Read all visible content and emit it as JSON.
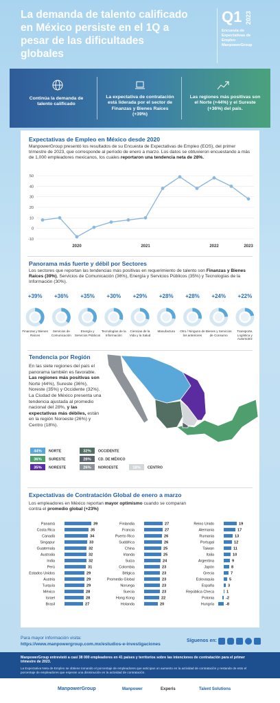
{
  "header": {
    "title": "La demanda de talento calificado en México persiste en el 1Q a pesar de las dificultades globales",
    "badge": {
      "quarter": "Q1",
      "year": "2023",
      "caption": "Encuesta de Expectativas de Empleo ManpowerGroup"
    }
  },
  "highlights": [
    "Continúa la demanda de talento calificado",
    "La expectativa de contratación está liderada por el sector de Finanzas y Bienes Raíces (+39%)",
    "Las regiones más positivas son el Norte (+44%) y el Sureste (+36%) del país."
  ],
  "chart_data": [
    {
      "type": "line",
      "title": "Expectativas de Empleo en México desde 2020",
      "text": [
        {
          "text": "ManpowerGroup presentó los resultados de su Encuesta de Expectativas de Empleo (EOS), del primer trimestre de 2023, que corresponde al período de enero a marzo. Los datos se obtuvieron encuestando a más de 1,000 empleadores mexicanos, los cuales "
        },
        {
          "text": "reportaron una tendencia neta de 28%.",
          "bold": true
        }
      ],
      "categories": [
        null,
        null,
        "2020",
        null,
        null,
        null,
        "2021",
        null,
        null,
        null,
        "2022",
        null,
        "2023"
      ],
      "values": [
        8,
        10,
        -8,
        1,
        6,
        8,
        10,
        38,
        49,
        38,
        48,
        40,
        28
      ],
      "color": "#8bb8de",
      "ylim": [
        -10,
        50
      ],
      "yticks": [
        -10,
        0,
        10,
        20,
        30,
        40,
        50
      ],
      "grid": true
    },
    {
      "type": "donut",
      "title": "Panorama más fuerte y débil por Sectores",
      "text": [
        {
          "text": "Los sectores que reportan las tendencias más positivas en requerimiento de talento son "
        },
        {
          "text": "Finanzas y Bienes Raíces (39%)",
          "bold": true
        },
        {
          "text": ", Servicios de Comunicación (36%), Energía y Servicios Públicos (35%) y Tecnologías de la Información (30%)."
        }
      ],
      "categories": [
        "Finanzas y Bienes Raíces",
        "Servicios de Comunicación",
        "Energía y Servicios Públicos",
        "Tecnologías de la Información",
        "Ciencias de la Vida y la Salud",
        "Manufactura",
        "Otro / Ninguno de los anteriores",
        "Bienes y Servicios de Consumo",
        "Transporte, Logística y Automotriz"
      ],
      "values": [
        39,
        36,
        35,
        30,
        29,
        28,
        28,
        24,
        22
      ],
      "value_labels": [
        "+39%",
        "+36%",
        "+35%",
        "+30%",
        "+29%",
        "+28%",
        "+28%",
        "+24%",
        "+22%"
      ],
      "color": "#5aa7d9"
    },
    {
      "type": "map",
      "title": "Tendencia por Región",
      "text": [
        {
          "text": "En las siete regiones del país el panorama también es favorable. "
        },
        {
          "text": "Las regiones más positivas son",
          "bold": true
        },
        {
          "text": " Norte (44%), Sureste (36%), Noreste (35%) y Occidente (32%). La Ciudad de México presenta una tendencia ajustada al promedio nacional del 28%, "
        },
        {
          "text": "y las expectativas más débiles,",
          "bold": true
        },
        {
          "text": " están en la región Noroeste (26%) y Centro (18%)."
        }
      ],
      "categories": [
        "NORTE",
        "SURESTE",
        "NORESTE",
        "OCCIDENTE",
        "CD. DE MÉXICO",
        "NOROESTE",
        "CENTRO"
      ],
      "values": [
        44,
        36,
        35,
        32,
        28,
        26,
        18
      ],
      "value_labels": [
        "44%",
        "36%",
        "35%",
        "32%",
        "28%",
        "26%",
        "18%"
      ],
      "colors": [
        "#5aa7d9",
        "#4e9e6e",
        "#5b2ca0",
        "#536e62",
        "#5b636b",
        "#8d9398",
        "#d3d7da"
      ]
    },
    {
      "type": "hbar",
      "title": "Expectativas de Contratación Global de enero a marzo",
      "text": [
        {
          "text": "Los empleadores en México reportan "
        },
        {
          "text": "mayor optimismo",
          "bold": true
        },
        {
          "text": " cuando se comparan contra el "
        },
        {
          "text": "promedio global (+23%)",
          "bold": true
        }
      ],
      "categories": [
        "Panamá",
        "Costa Rica",
        "Canadá",
        "Singapur",
        "Guatemala",
        "Australia",
        "India",
        "Perú",
        "Estados Unidos",
        "Austria",
        "Turquía",
        "México",
        "Israel",
        "Brasil",
        "Finlandia",
        "Francia",
        "Puerto Rico",
        "Sudáfrica",
        "China",
        "Irlanda",
        "Suiza",
        "Colombia",
        "Bélgica",
        "Promedio Global",
        "Noruega",
        "Suecia",
        "Hong Kong",
        "Holanda",
        "Reino Unido",
        "Alemania",
        "Rumania",
        "Portugal",
        "Taiwan",
        "Italia",
        "Argentina",
        "Japón",
        "Grecia",
        "Eslovaquia",
        "España",
        "República Checa",
        "Polonia",
        "Hungría"
      ],
      "values": [
        39,
        35,
        34,
        33,
        32,
        32,
        32,
        31,
        29,
        29,
        29,
        28,
        28,
        27,
        27,
        27,
        26,
        26,
        25,
        25,
        24,
        23,
        23,
        23,
        23,
        23,
        22,
        20,
        19,
        17,
        13,
        12,
        11,
        10,
        9,
        8,
        7,
        5,
        3,
        1,
        -2,
        -8
      ],
      "xlim": [
        -10,
        40
      ],
      "color": "#3f7fc0"
    }
  ],
  "footer": {
    "visit": "Para mayor información visita:",
    "url": "https://www.manpowergroup.com.mx/estudios-e-investigaciones",
    "follow": "Síguenos en:",
    "note1": "ManpowerGroup entrevistó a casi 38 000 empleadores en 41 países y territorios sobre las intenciones de contratación para el primer trimestre de 2023.",
    "note2": "La Expectativa Neta de Empleo se obtiene tomando el porcentaje de empleadores que anticipan un aumento en la actividad de contratación y restando de esto el porcentaje de empleadores que esperan una disminución en la actividad de contratación.",
    "logos": [
      "ManpowerGroup",
      "Manpower",
      "Experis",
      "Talent Solutions"
    ]
  }
}
